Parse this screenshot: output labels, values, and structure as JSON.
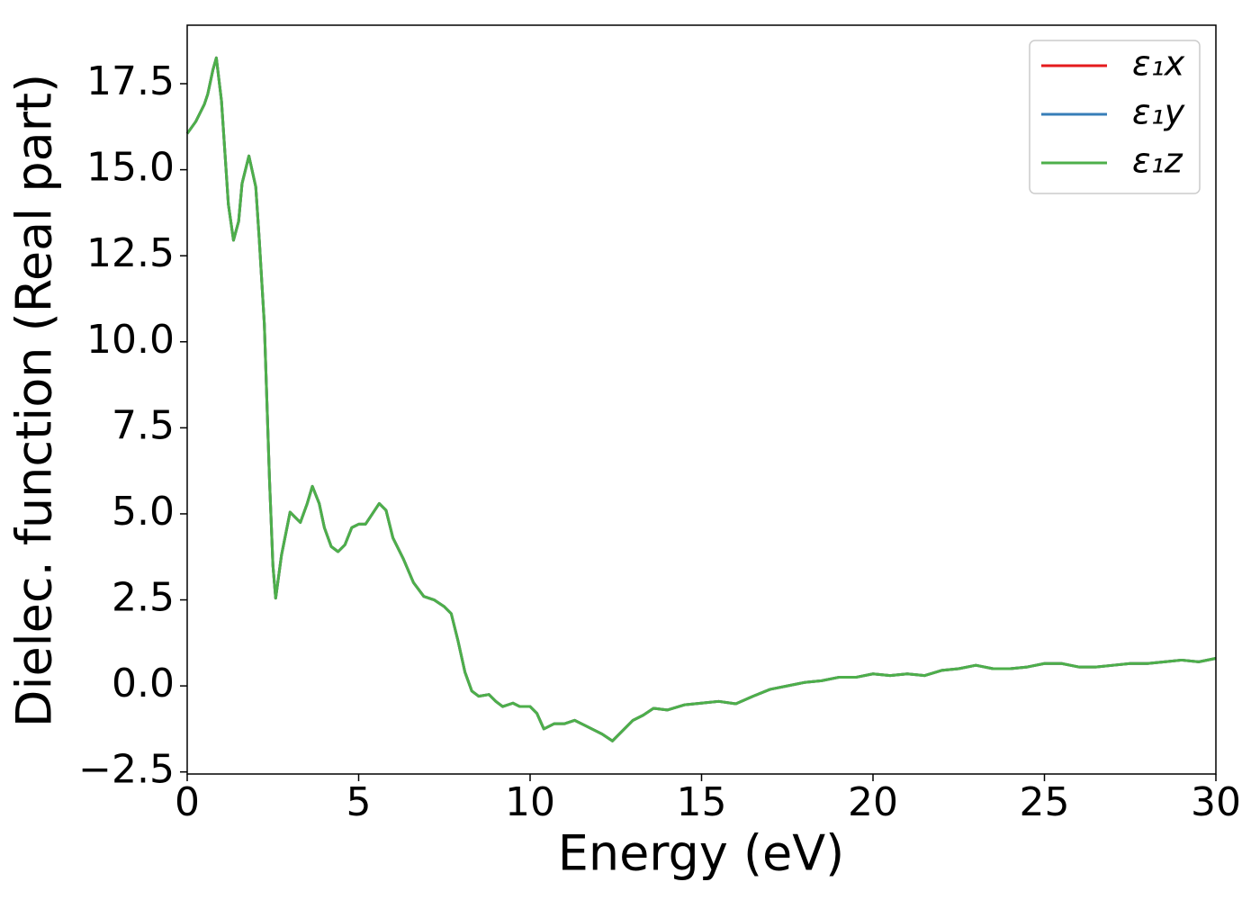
{
  "chart_data": {
    "type": "line",
    "xlabel": "Energy (eV)",
    "ylabel": "Dielec. function (Real part)",
    "x": [
      0,
      0.25,
      0.5,
      0.6,
      0.75,
      0.85,
      1.0,
      1.1,
      1.2,
      1.35,
      1.5,
      1.6,
      1.8,
      2.0,
      2.1,
      2.25,
      2.4,
      2.5,
      2.58,
      2.75,
      3.0,
      3.15,
      3.3,
      3.5,
      3.65,
      3.85,
      4.0,
      4.2,
      4.4,
      4.6,
      4.8,
      5.0,
      5.2,
      5.4,
      5.6,
      5.8,
      6.0,
      6.3,
      6.6,
      6.9,
      7.2,
      7.5,
      7.7,
      7.9,
      8.1,
      8.3,
      8.5,
      8.8,
      9.0,
      9.2,
      9.5,
      9.7,
      10.0,
      10.2,
      10.4,
      10.7,
      11.0,
      11.3,
      11.6,
      11.9,
      12.1,
      12.4,
      12.7,
      13.0,
      13.3,
      13.6,
      14.0,
      14.5,
      15.0,
      15.5,
      16.0,
      16.5,
      17.0,
      17.5,
      18.0,
      18.5,
      19.0,
      19.5,
      20.0,
      20.5,
      21.0,
      21.5,
      22.0,
      22.5,
      23.0,
      23.5,
      24.0,
      24.5,
      25.0,
      25.5,
      26.0,
      26.5,
      27.0,
      27.5,
      28.0,
      28.5,
      29.0,
      29.5,
      30.0
    ],
    "series": [
      {
        "name": "ε₁x",
        "color": "#e41a1c",
        "values": [
          16.05,
          16.4,
          16.9,
          17.2,
          17.9,
          18.25,
          17.0,
          15.5,
          14.0,
          12.95,
          13.5,
          14.6,
          15.4,
          14.5,
          13.0,
          10.5,
          6.0,
          3.5,
          2.55,
          3.8,
          5.05,
          4.9,
          4.75,
          5.3,
          5.8,
          5.3,
          4.6,
          4.05,
          3.9,
          4.1,
          4.6,
          4.7,
          4.7,
          5.0,
          5.3,
          5.1,
          4.3,
          3.7,
          3.0,
          2.6,
          2.5,
          2.3,
          2.1,
          1.3,
          0.4,
          -0.15,
          -0.3,
          -0.25,
          -0.45,
          -0.6,
          -0.5,
          -0.6,
          -0.6,
          -0.8,
          -1.25,
          -1.1,
          -1.1,
          -1.0,
          -1.15,
          -1.3,
          -1.4,
          -1.6,
          -1.3,
          -1.0,
          -0.85,
          -0.65,
          -0.7,
          -0.55,
          -0.5,
          -0.45,
          -0.52,
          -0.3,
          -0.1,
          0.0,
          0.1,
          0.15,
          0.25,
          0.25,
          0.35,
          0.3,
          0.35,
          0.3,
          0.45,
          0.5,
          0.6,
          0.5,
          0.5,
          0.55,
          0.65,
          0.65,
          0.55,
          0.55,
          0.6,
          0.65,
          0.65,
          0.7,
          0.75,
          0.7,
          0.8
        ]
      },
      {
        "name": "ε₁y",
        "color": "#377eb8",
        "values": [
          16.05,
          16.4,
          16.9,
          17.2,
          17.9,
          18.25,
          17.0,
          15.5,
          14.0,
          12.95,
          13.5,
          14.6,
          15.4,
          14.5,
          13.0,
          10.5,
          6.0,
          3.5,
          2.55,
          3.8,
          5.05,
          4.9,
          4.75,
          5.3,
          5.8,
          5.3,
          4.6,
          4.05,
          3.9,
          4.1,
          4.6,
          4.7,
          4.7,
          5.0,
          5.3,
          5.1,
          4.3,
          3.7,
          3.0,
          2.6,
          2.5,
          2.3,
          2.1,
          1.3,
          0.4,
          -0.15,
          -0.3,
          -0.25,
          -0.45,
          -0.6,
          -0.5,
          -0.6,
          -0.6,
          -0.8,
          -1.25,
          -1.1,
          -1.1,
          -1.0,
          -1.15,
          -1.3,
          -1.4,
          -1.6,
          -1.3,
          -1.0,
          -0.85,
          -0.65,
          -0.7,
          -0.55,
          -0.5,
          -0.45,
          -0.52,
          -0.3,
          -0.1,
          0.0,
          0.1,
          0.15,
          0.25,
          0.25,
          0.35,
          0.3,
          0.35,
          0.3,
          0.45,
          0.5,
          0.6,
          0.5,
          0.5,
          0.55,
          0.65,
          0.65,
          0.55,
          0.55,
          0.6,
          0.65,
          0.65,
          0.7,
          0.75,
          0.7,
          0.8
        ]
      },
      {
        "name": "ε₁z",
        "color": "#4daf4a",
        "values": [
          16.05,
          16.4,
          16.9,
          17.2,
          17.9,
          18.25,
          17.0,
          15.5,
          14.0,
          12.95,
          13.5,
          14.6,
          15.4,
          14.5,
          13.0,
          10.5,
          6.0,
          3.5,
          2.55,
          3.8,
          5.05,
          4.9,
          4.75,
          5.3,
          5.8,
          5.3,
          4.6,
          4.05,
          3.9,
          4.1,
          4.6,
          4.7,
          4.7,
          5.0,
          5.3,
          5.1,
          4.3,
          3.7,
          3.0,
          2.6,
          2.5,
          2.3,
          2.1,
          1.3,
          0.4,
          -0.15,
          -0.3,
          -0.25,
          -0.45,
          -0.6,
          -0.5,
          -0.6,
          -0.6,
          -0.8,
          -1.25,
          -1.1,
          -1.1,
          -1.0,
          -1.15,
          -1.3,
          -1.4,
          -1.6,
          -1.3,
          -1.0,
          -0.85,
          -0.65,
          -0.7,
          -0.55,
          -0.5,
          -0.45,
          -0.52,
          -0.3,
          -0.1,
          0.0,
          0.1,
          0.15,
          0.25,
          0.25,
          0.35,
          0.3,
          0.35,
          0.3,
          0.45,
          0.5,
          0.6,
          0.5,
          0.5,
          0.55,
          0.65,
          0.65,
          0.55,
          0.55,
          0.6,
          0.65,
          0.65,
          0.7,
          0.75,
          0.7,
          0.8
        ]
      }
    ],
    "xlim": [
      0,
      30
    ],
    "xticks": [
      0,
      5,
      10,
      15,
      20,
      25,
      30
    ],
    "ylim": [
      -2.56,
      19.2
    ],
    "yticks": [
      {
        "value": -2.5,
        "label": "−2.5"
      },
      {
        "value": 0,
        "label": "0.0"
      },
      2.5,
      {
        "value": 5,
        "label": "5.0"
      },
      7.5,
      {
        "value": 10,
        "label": "10.0"
      },
      12.5,
      {
        "value": 15,
        "label": "15.0"
      },
      17.5
    ],
    "grid": false,
    "legend": "upper right"
  }
}
